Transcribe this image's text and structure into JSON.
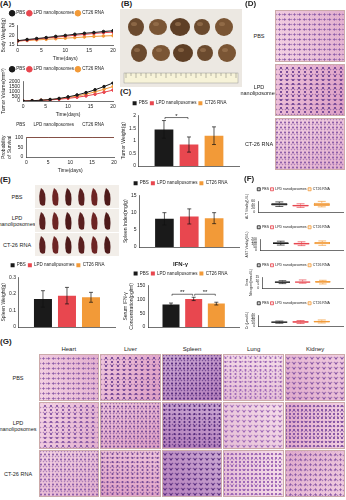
{
  "chart_data": [
    {
      "type": "line",
      "panel": "(A)",
      "x_label": "Time(days)",
      "y_label": "Body Weight(g)",
      "x": [
        0,
        2,
        4,
        6,
        8,
        10,
        12,
        14,
        16,
        18,
        20
      ],
      "xlim": [
        0,
        20
      ],
      "xticks": [
        0,
        5,
        10,
        15,
        20
      ],
      "ylim": [
        15,
        25
      ],
      "yticks": [
        15,
        20,
        25
      ],
      "grid": false,
      "legend": "top",
      "marker": "circle",
      "series": [
        {
          "name": "PBS",
          "color": "#1a1a1a",
          "values": [
            17.2,
            17.8,
            18.3,
            18.8,
            19.4,
            19.9,
            20.5,
            21.0,
            21.4,
            21.9,
            22.3
          ]
        },
        {
          "name": "LPD nanoliposomes",
          "color": "#e8474f",
          "values": [
            17.0,
            17.5,
            18.0,
            18.6,
            19.0,
            19.5,
            20.0,
            20.4,
            20.9,
            21.3,
            21.6
          ]
        },
        {
          "name": "CT26 RNA",
          "color": "#f29a38",
          "values": [
            17.1,
            17.3,
            17.6,
            17.9,
            18.2,
            18.5,
            18.8,
            19.1,
            19.4,
            19.6,
            19.8
          ]
        }
      ]
    },
    {
      "type": "line",
      "x_label": "Time(days)",
      "y_label": "Tumor Volume(mm³)",
      "x": [
        0,
        2,
        4,
        6,
        8,
        10,
        12,
        14,
        16,
        18,
        20
      ],
      "xlim": [
        0,
        20
      ],
      "xticks": [
        0,
        5,
        10,
        15,
        20
      ],
      "ylim": [
        0,
        2000
      ],
      "yticks": [
        0,
        500,
        1000,
        1500,
        2000
      ],
      "grid": false,
      "legend": "top",
      "marker": "circle",
      "series": [
        {
          "name": "PBS",
          "color": "#1a1a1a",
          "values": [
            0,
            30,
            80,
            150,
            260,
            420,
            620,
            860,
            1150,
            1480,
            1850
          ]
        },
        {
          "name": "LPD nanoliposomes",
          "color": "#e8474f",
          "values": [
            0,
            25,
            60,
            110,
            180,
            270,
            380,
            520,
            690,
            900,
            1120
          ]
        },
        {
          "name": "CT26 RNA",
          "color": "#f29a38",
          "values": [
            0,
            28,
            70,
            130,
            220,
            340,
            500,
            700,
            940,
            1200,
            1480
          ]
        }
      ]
    },
    {
      "type": "line",
      "x_label": "Time(days)",
      "y_label": "Probability of Survival",
      "x": [
        0,
        5,
        10,
        15,
        20
      ],
      "xlim": [
        0,
        20
      ],
      "xticks": [
        0,
        5,
        10,
        15,
        20
      ],
      "ylim": [
        0,
        100
      ],
      "yticks": [
        0,
        50,
        100
      ],
      "grid": false,
      "legend": "top",
      "marker": "none",
      "series": [
        {
          "name": "PBS",
          "color": "#1a1a1a",
          "values": [
            100,
            100,
            100,
            100,
            100
          ]
        },
        {
          "name": "LPD nanoliposomes",
          "color": "#e8474f",
          "values": [
            100,
            100,
            100,
            100,
            100
          ]
        },
        {
          "name": "CT26 RNA",
          "color": "#f29a38",
          "values": [
            100,
            100,
            100,
            100,
            100
          ]
        }
      ]
    },
    {
      "type": "bar",
      "panel": "(C)",
      "y_label": "Tumor Weight(g)",
      "categories": [
        null
      ],
      "ylim": [
        0,
        2
      ],
      "yticks": [
        0,
        0.5,
        1,
        1.5,
        2
      ],
      "grid": false,
      "legend": "top",
      "tick_labels": "y",
      "series": [
        {
          "name": "PBS",
          "color": "#1a1a1a",
          "values": [
            1.45
          ],
          "errors": [
            0.35
          ]
        },
        {
          "name": "LPD nanoliposomes",
          "color": "#e8474f",
          "values": [
            0.85
          ],
          "errors": [
            0.3
          ]
        },
        {
          "name": "CT26 RNA",
          "color": "#f29a38",
          "values": [
            1.2
          ],
          "errors": [
            0.35
          ]
        }
      ],
      "annotations": [
        {
          "text": "*",
          "between": [
            0,
            1
          ]
        }
      ]
    },
    {
      "type": "bar",
      "y_label": "Spleen Index(mg/g)",
      "categories": [
        null
      ],
      "ylim": [
        0,
        15
      ],
      "yticks": [
        0,
        5,
        10,
        15
      ],
      "grid": false,
      "legend": "top",
      "tick_labels": "y",
      "series": [
        {
          "name": "PBS",
          "color": "#1a1a1a",
          "values": [
            8.2
          ],
          "errors": [
            1.8
          ]
        },
        {
          "name": "LPD nanoliposomes",
          "color": "#e8474f",
          "values": [
            8.9
          ],
          "errors": [
            2.2
          ]
        },
        {
          "name": "CT26 RNA",
          "color": "#f29a38",
          "values": [
            8.4
          ],
          "errors": [
            1.6
          ]
        }
      ]
    },
    {
      "type": "bar",
      "y_label": "Spleen Weight(g)",
      "categories": [
        null
      ],
      "ylim": [
        0,
        0.3
      ],
      "yticks": [
        0,
        0.1,
        0.2,
        0.3
      ],
      "grid": false,
      "legend": "top",
      "tick_labels": "y",
      "series": [
        {
          "name": "PBS",
          "color": "#1a1a1a",
          "values": [
            0.17
          ],
          "errors": [
            0.05
          ]
        },
        {
          "name": "LPD nanoliposomes",
          "color": "#e8474f",
          "values": [
            0.19
          ],
          "errors": [
            0.05
          ]
        },
        {
          "name": "CT26 RNA",
          "color": "#f29a38",
          "values": [
            0.18
          ],
          "errors": [
            0.03
          ]
        }
      ]
    },
    {
      "type": "bar",
      "title": "IFN-γ",
      "y_label": "Serum IFN-γ Concentration(pg/ml)",
      "categories": [
        null
      ],
      "ylim": [
        0,
        150
      ],
      "yticks": [
        0,
        50,
        100,
        150
      ],
      "grid": false,
      "legend": "top",
      "tick_labels": "y",
      "series": [
        {
          "name": "PBS",
          "color": "#1a1a1a",
          "values": [
            82
          ],
          "errors": [
            5
          ]
        },
        {
          "name": "LPD nanoliposomes",
          "color": "#e8474f",
          "values": [
            102
          ],
          "errors": [
            6
          ]
        },
        {
          "name": "CT26 RNA",
          "color": "#f29a38",
          "values": [
            85
          ],
          "errors": [
            5
          ]
        }
      ],
      "annotations": [
        {
          "text": "**",
          "between": [
            0,
            1
          ]
        },
        {
          "text": "**",
          "between": [
            1,
            2
          ]
        }
      ]
    },
    {
      "type": "box",
      "panel": "(F)",
      "y_label": "ALT Vitality(U/L)",
      "categories": [
        null
      ],
      "ylim": [
        0,
        60
      ],
      "yticks": [
        0,
        20,
        40,
        60
      ],
      "grid": false,
      "legend": "top",
      "tick_labels": "y",
      "series": [
        {
          "name": "PBS",
          "color": "#1a1a1a",
          "values": [
            [
              30,
              35,
              42,
              48,
              55
            ]
          ]
        },
        {
          "name": "LPD nanoliposomes",
          "color": "#e8474f",
          "values": [
            [
              25,
              30,
              35,
              40,
              45
            ]
          ]
        },
        {
          "name": "CT26 RNA",
          "color": "#f29a38",
          "values": [
            [
              28,
              33,
              40,
              50,
              58
            ]
          ]
        }
      ]
    },
    {
      "type": "box",
      "y_label": "AST Vitality(U/L)",
      "categories": [
        null
      ],
      "ylim": [
        0,
        200
      ],
      "yticks": [
        0,
        50,
        100,
        150,
        200
      ],
      "grid": false,
      "legend": "top",
      "tick_labels": "y",
      "series": [
        {
          "name": "PBS",
          "color": "#1a1a1a",
          "values": [
            [
              90,
              110,
              120,
              140,
              160
            ]
          ]
        },
        {
          "name": "LPD nanoliposomes",
          "color": "#e8474f",
          "values": [
            [
              80,
              100,
              115,
              130,
              150
            ]
          ]
        },
        {
          "name": "CT26 RNA",
          "color": "#f29a38",
          "values": [
            [
              85,
              105,
              125,
              145,
              165
            ]
          ]
        }
      ]
    },
    {
      "type": "box",
      "y_label": "Urea Nitrogen(mmol/L)",
      "categories": [
        null
      ],
      "ylim": [
        0,
        15
      ],
      "yticks": [
        0,
        5,
        10,
        15
      ],
      "grid": false,
      "legend": "top",
      "tick_labels": "y",
      "series": [
        {
          "name": "PBS",
          "color": "#1a1a1a",
          "values": [
            [
              6,
              7,
              8,
              9,
              10
            ]
          ]
        },
        {
          "name": "LPD nanoliposomes",
          "color": "#e8474f",
          "values": [
            [
              6.5,
              7.5,
              8,
              9,
              11
            ]
          ]
        },
        {
          "name": "CT26 RNA",
          "color": "#f29a38",
          "values": [
            [
              5.5,
              7,
              8.5,
              9.5,
              10.5
            ]
          ]
        }
      ]
    },
    {
      "type": "box",
      "y_label": "Cr (μmol/L)",
      "categories": [
        null
      ],
      "ylim": [
        0,
        40
      ],
      "yticks": [
        0,
        10,
        20,
        30,
        40
      ],
      "grid": false,
      "legend": "top",
      "tick_labels": "y",
      "series": [
        {
          "name": "PBS",
          "color": "#1a1a1a",
          "values": [
            [
              10,
              12,
              14,
              16,
              18
            ]
          ]
        },
        {
          "name": "LPD nanoliposomes",
          "color": "#e8474f",
          "values": [
            [
              9,
              12,
              15,
              17,
              20
            ]
          ]
        },
        {
          "name": "CT26 RNA",
          "color": "#f29a38",
          "values": [
            [
              11,
              13,
              16,
              19,
              22
            ]
          ]
        }
      ]
    }
  ],
  "images": [
    {
      "panel": "(B)"
    },
    {
      "panel": "(D)",
      "rows": [
        "PBS",
        "LPD nanoliposomes",
        "CT-26 RNA"
      ]
    },
    {
      "panel": "(E)",
      "rows": [
        "PBS",
        "LPD nanoliposomes",
        "CT-26 RNA"
      ]
    },
    {
      "panel": "(G)",
      "rows": [
        "PBS",
        "LPD nanoliposomes",
        "CT-26 RNA"
      ],
      "columns": [
        "Heart",
        "Liver",
        "Spleen",
        "Lung",
        "Kidney"
      ]
    }
  ]
}
